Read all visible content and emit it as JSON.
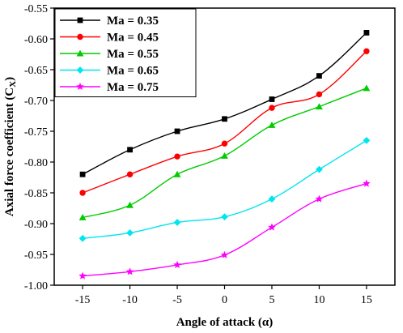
{
  "chart_data": {
    "type": "line",
    "xlabel": "Angle of attack (α)",
    "ylabel": "Axial force coefficient (C",
    "ylabel_sub": "X",
    "ylabel_tail": ")",
    "xlim": [
      -18,
      18
    ],
    "ylim": [
      -1.0,
      -0.55
    ],
    "xticks": [
      -15,
      -10,
      -5,
      0,
      5,
      10,
      15
    ],
    "yticks": [
      -1.0,
      -0.95,
      -0.9,
      -0.85,
      -0.8,
      -0.75,
      -0.7,
      -0.65,
      -0.6,
      -0.55
    ],
    "ytick_labels": [
      "-1.00",
      "-0.95",
      "-0.90",
      "-0.85",
      "-0.80",
      "-0.75",
      "-0.70",
      "-0.65",
      "-0.60",
      "-0.55"
    ],
    "x": [
      -15,
      -10,
      -5,
      0,
      5,
      10,
      15
    ],
    "grid": false,
    "legend_position": "top-left",
    "series": [
      {
        "name": "Ma = 0.35",
        "color": "#000000",
        "marker": "square",
        "values": [
          -0.82,
          -0.78,
          -0.75,
          -0.73,
          -0.698,
          -0.66,
          -0.59
        ]
      },
      {
        "name": "Ma = 0.45",
        "color": "#ff0000",
        "marker": "circle",
        "values": [
          -0.85,
          -0.82,
          -0.791,
          -0.77,
          -0.712,
          -0.69,
          -0.62
        ]
      },
      {
        "name": "Ma = 0.55",
        "color": "#00cc00",
        "marker": "triangle",
        "values": [
          -0.89,
          -0.87,
          -0.82,
          -0.79,
          -0.74,
          -0.71,
          -0.68
        ]
      },
      {
        "name": "Ma = 0.65",
        "color": "#00e5ee",
        "marker": "diamond",
        "values": [
          -0.924,
          -0.915,
          -0.898,
          -0.889,
          -0.86,
          -0.812,
          -0.765
        ]
      },
      {
        "name": "Ma = 0.75",
        "color": "#ff00ff",
        "marker": "star",
        "values": [
          -0.985,
          -0.978,
          -0.967,
          -0.951,
          -0.906,
          -0.86,
          -0.835
        ]
      }
    ]
  }
}
